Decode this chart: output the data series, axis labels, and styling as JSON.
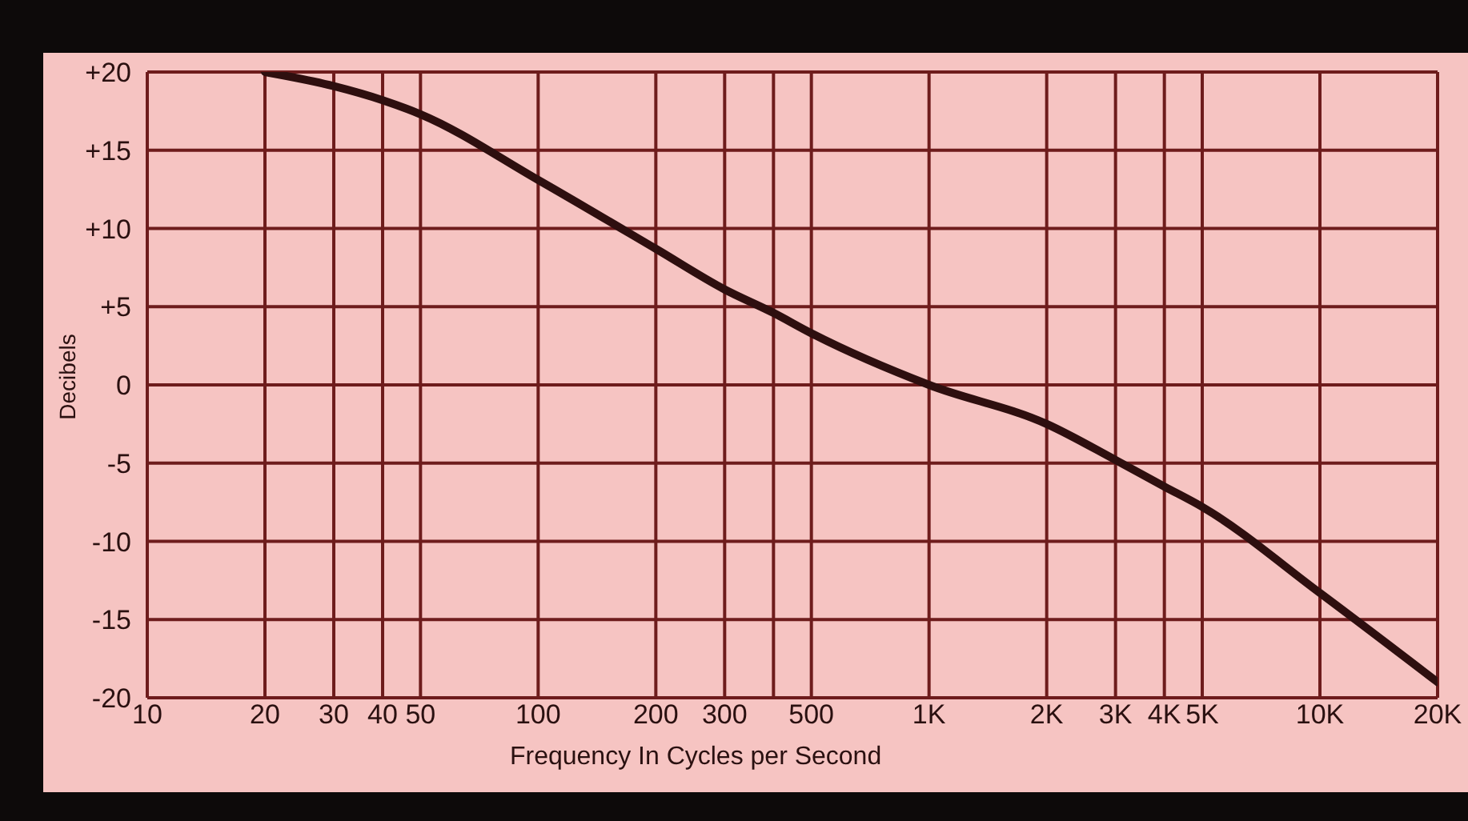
{
  "chart_data": {
    "type": "line",
    "xlabel": "Frequency In Cycles per Second",
    "ylabel": "Decibels",
    "log": "x",
    "x": [
      20,
      30,
      40,
      50,
      100,
      200,
      300,
      400,
      500,
      1000,
      2000,
      3000,
      4000,
      5000,
      10000,
      20000
    ],
    "series": [
      {
        "color": "#2e0f0f",
        "values": [
          20,
          19.1,
          18.2,
          17.3,
          13.1,
          8.7,
          6.1,
          4.6,
          3.3,
          0,
          -2.5,
          -4.8,
          -6.5,
          -7.8,
          -13.3,
          -19
        ]
      }
    ],
    "xlim": [
      10,
      20000
    ],
    "ylim": [
      -20,
      20
    ],
    "xticks": [
      10,
      20,
      30,
      40,
      50,
      100,
      200,
      300,
      {
        "value": 400,
        "label": null
      },
      500,
      {
        "value": 1000,
        "label": "1K"
      },
      {
        "value": 2000,
        "label": "2K"
      },
      {
        "value": 3000,
        "label": "3K"
      },
      {
        "value": 4000,
        "label": "4K"
      },
      {
        "value": 5000,
        "label": "5K"
      },
      {
        "value": 10000,
        "label": "10K"
      },
      {
        "value": 20000,
        "label": "20K"
      }
    ],
    "yticks": [
      {
        "value": 20,
        "label": "+20"
      },
      {
        "value": 15,
        "label": "+15"
      },
      {
        "value": 10,
        "label": "+10"
      },
      {
        "value": 5,
        "label": "+5"
      },
      0,
      -5,
      -10,
      -15,
      -20
    ],
    "grid": true,
    "marker": "none",
    "line_style": "solid"
  }
}
